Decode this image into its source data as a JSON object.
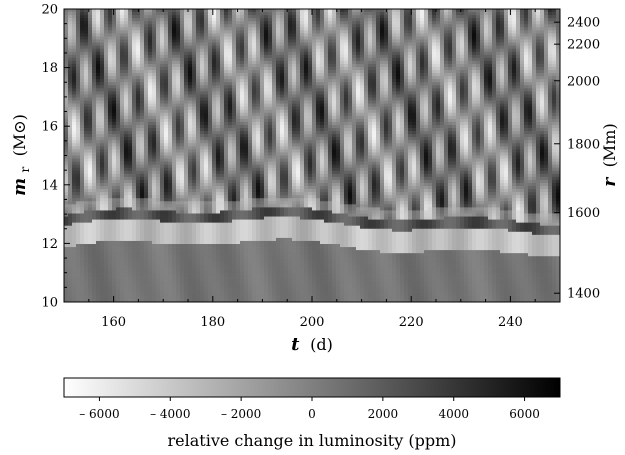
{
  "chart_data": {
    "type": "heatmap",
    "x_axis": {
      "label_var": "t",
      "label_unit": "(d)",
      "range": [
        150,
        250
      ],
      "ticks": [
        160,
        180,
        200,
        220,
        240
      ],
      "tick_labels": [
        "160",
        "180",
        "200",
        "220",
        "240"
      ]
    },
    "y_axis_left": {
      "label_var": "m",
      "label_sub": "r",
      "label_unit": "(M⊙)",
      "range": [
        10,
        20
      ],
      "ticks": [
        10,
        12,
        14,
        16,
        18,
        20
      ],
      "tick_labels": [
        "10",
        "12",
        "14",
        "16",
        "18",
        "20"
      ]
    },
    "y_axis_right": {
      "label_var": "r",
      "label_unit": "(Mm)",
      "ticks": [
        {
          "m": 10.3,
          "label": "1400"
        },
        {
          "m": 13.05,
          "label": "1600"
        },
        {
          "m": 15.4,
          "label": "1800"
        },
        {
          "m": 17.55,
          "label": "2000"
        },
        {
          "m": 18.8,
          "label": "2200"
        },
        {
          "m": 19.55,
          "label": "2400"
        }
      ]
    },
    "colorbar": {
      "label": "relative change in luminosity (ppm)",
      "range": [
        -7000,
        7000
      ],
      "colormap": "gray",
      "low_color": "#ffffff",
      "high_color": "#000000",
      "ticks": [
        -6000,
        -4000,
        -2000,
        0,
        2000,
        4000,
        6000
      ],
      "tick_labels": [
        "– 6000",
        "– 4000",
        "– 2000",
        "0",
        "2000",
        "4000",
        "6000"
      ]
    },
    "field": {
      "convective_boundary_m": 12.95,
      "upper_zone_amplitude_ppm": 6000,
      "lower_zone_mean_ppm": 600,
      "bright_band_ppm": -3500
    }
  }
}
